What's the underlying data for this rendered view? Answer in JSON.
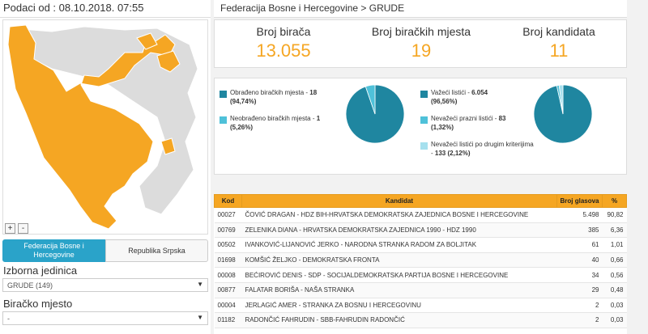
{
  "left": {
    "header": "Podaci od : 08.10.2018. 07:55",
    "zoom_in": "+",
    "zoom_out": "-",
    "entity_tabs": [
      {
        "label": "Federacija Bosne i Hercegovine"
      },
      {
        "label": "Republika Srpska"
      }
    ],
    "unit_label": "Izborna jedinica",
    "unit_value": "GRUDE (149)",
    "place_label": "Biračko mjesto",
    "place_value": "-",
    "colors": {
      "fbih": "#f5a623",
      "rs": "#dcdcdc"
    }
  },
  "breadcrumb": "Federacija Bosne i Hercegovine > GRUDE",
  "stats": [
    {
      "title": "Broj birača",
      "value": "13.055"
    },
    {
      "title": "Broj biračkih mjesta",
      "value": "19"
    },
    {
      "title": "Broj kandidata",
      "value": "11"
    }
  ],
  "pie1": {
    "items": [
      {
        "label": "Obrađeno biračkih mjesta - ",
        "value": "18",
        "pct": "(94,74%)",
        "color": "#1f86a0",
        "fraction": 0.9474
      },
      {
        "label": "Neobrađeno biračkih mjesta - ",
        "value": "1",
        "pct": "(5,26%)",
        "color": "#4fc1d9",
        "fraction": 0.0526
      }
    ]
  },
  "pie2": {
    "items": [
      {
        "label": "Važeći listići - ",
        "value": "6.054",
        "pct": "(96,56%)",
        "color": "#1f86a0",
        "fraction": 0.9656
      },
      {
        "label": "Nevažeći prazni listići - ",
        "value": "83",
        "pct": "(1,32%)",
        "color": "#4fc1d9",
        "fraction": 0.0132
      },
      {
        "label": "Nevažeći listići po drugim kriterijima - ",
        "value": "133",
        "pct": "(2,12%)",
        "color": "#a6e0ee",
        "fraction": 0.0212
      }
    ]
  },
  "table": {
    "headers": [
      "Kod",
      "Kandidat",
      "Broj glasova",
      "%"
    ],
    "rows": [
      [
        "00027",
        "ČOVIĆ DRAGAN - HDZ BIH-HRVATSKA DEMOKRATSKA ZAJEDNICA BOSNE I HERCEGOVINE",
        "5.498",
        "90,82"
      ],
      [
        "00769",
        "ZELENIKA DIANA - HRVATSKA DEMOKRATSKA ZAJEDNICA 1990 - HDZ 1990",
        "385",
        "6,36"
      ],
      [
        "00502",
        "IVANKOVIĆ-LIJANOVIĆ JERKO - NARODNA STRANKA RADOM ZA BOLJITAK",
        "61",
        "1,01"
      ],
      [
        "01698",
        "KOMŠIĆ ŽELJKO - DEMOKRATSKA FRONTA",
        "40",
        "0,66"
      ],
      [
        "00008",
        "BEĆIROVIĆ DENIS - SDP - SOCIJALDEMOKRATSKA PARTIJA BOSNE I HERCEGOVINE",
        "34",
        "0,56"
      ],
      [
        "00877",
        "FALATAR BORIŠA - NAŠA STRANKA",
        "29",
        "0,48"
      ],
      [
        "00004",
        "JERLAGIĆ AMER - STRANKA ZA BOSNU I HERCEGOVINU",
        "2",
        "0,03"
      ],
      [
        "01182",
        "RADONČIĆ FAHRUDIN - SBB-FAHRUDIN RADONČIĆ",
        "2",
        "0,03"
      ]
    ]
  }
}
